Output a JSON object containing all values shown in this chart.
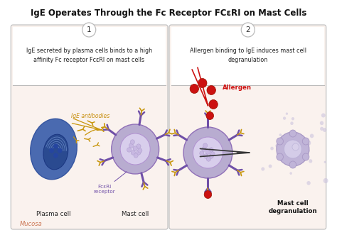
{
  "title": "IgE Operates Through the Fc Receptor FCεRI on Mast Cells",
  "panel1_title": "IgE secreted by plasma cells binds to a high\naffinity Fc receptor FcεRI on mast cells",
  "panel2_title": "Allergen binding to IgE induces mast cell\ndegranulation",
  "step1": "1",
  "step2": "2",
  "bg_color": "#ffffff",
  "panel1_bg": "#faf2ee",
  "panel2_bg": "#faf2ee",
  "header_bg": "#ffffff",
  "border_color": "#bbbbbb",
  "plasma_outer": "#4a6ab0",
  "plasma_inner": "#2a4a90",
  "plasma_nucleus": "#3050a0",
  "mast_outer": "#b8acd0",
  "mast_mid": "#c8bce0",
  "mast_inner": "#d8ceec",
  "receptor_color": "#7050a8",
  "antibody_color": "#c8960c",
  "allergen_color": "#cc1111",
  "mucosa_color": "#cc7755",
  "gold_label": "#c89010",
  "purple_label": "#7050a8",
  "red_label": "#cc1111",
  "degen_outer": "#c0b4d8",
  "degen_inner": "#d4cce8"
}
